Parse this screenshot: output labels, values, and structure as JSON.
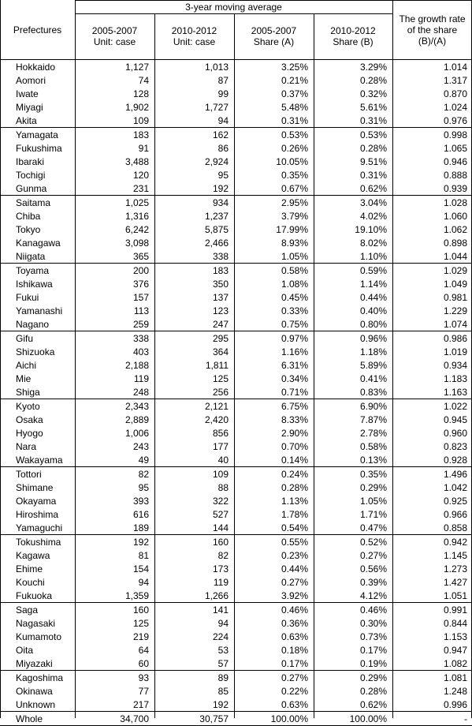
{
  "header": {
    "title": "Prefectures",
    "span_title": "3-year moving average",
    "columns": [
      "2005-2007\nUnit: case",
      "2010-2012\nUnit: case",
      "2005-2007\nShare (A)",
      "2010-2012\nShare (B)"
    ],
    "growth": "The growth rate\nof the share\n(B)/(A)"
  },
  "table": {
    "groups": [
      [
        [
          "Hokkaido",
          "1,127",
          "1,013",
          "3.25%",
          "3.29%",
          "1.014"
        ],
        [
          "Aomori",
          "74",
          "87",
          "0.21%",
          "0.28%",
          "1.317"
        ],
        [
          "Iwate",
          "128",
          "99",
          "0.37%",
          "0.32%",
          "0.870"
        ],
        [
          "Miyagi",
          "1,902",
          "1,727",
          "5.48%",
          "5.61%",
          "1.024"
        ],
        [
          "Akita",
          "109",
          "94",
          "0.31%",
          "0.31%",
          "0.976"
        ]
      ],
      [
        [
          "Yamagata",
          "183",
          "162",
          "0.53%",
          "0.53%",
          "0.998"
        ],
        [
          "Fukushima",
          "91",
          "86",
          "0.26%",
          "0.28%",
          "1.065"
        ],
        [
          "Ibaraki",
          "3,488",
          "2,924",
          "10.05%",
          "9.51%",
          "0.946"
        ],
        [
          "Tochigi",
          "120",
          "95",
          "0.35%",
          "0.31%",
          "0.888"
        ],
        [
          "Gunma",
          "231",
          "192",
          "0.67%",
          "0.62%",
          "0.939"
        ]
      ],
      [
        [
          "Saitama",
          "1,025",
          "934",
          "2.95%",
          "3.04%",
          "1.028"
        ],
        [
          "Chiba",
          "1,316",
          "1,237",
          "3.79%",
          "4.02%",
          "1.060"
        ],
        [
          "Tokyo",
          "6,242",
          "5,875",
          "17.99%",
          "19.10%",
          "1.062"
        ],
        [
          "Kanagawa",
          "3,098",
          "2,466",
          "8.93%",
          "8.02%",
          "0.898"
        ],
        [
          "Niigata",
          "365",
          "338",
          "1.05%",
          "1.10%",
          "1.044"
        ]
      ],
      [
        [
          "Toyama",
          "200",
          "183",
          "0.58%",
          "0.59%",
          "1.029"
        ],
        [
          "Ishikawa",
          "376",
          "350",
          "1.08%",
          "1.14%",
          "1.049"
        ],
        [
          "Fukui",
          "157",
          "137",
          "0.45%",
          "0.44%",
          "0.981"
        ],
        [
          "Yamanashi",
          "113",
          "123",
          "0.33%",
          "0.40%",
          "1.229"
        ],
        [
          "Nagano",
          "259",
          "247",
          "0.75%",
          "0.80%",
          "1.074"
        ]
      ],
      [
        [
          "Gifu",
          "338",
          "295",
          "0.97%",
          "0.96%",
          "0.986"
        ],
        [
          "Shizuoka",
          "403",
          "364",
          "1.16%",
          "1.18%",
          "1.019"
        ],
        [
          "Aichi",
          "2,188",
          "1,811",
          "6.31%",
          "5.89%",
          "0.934"
        ],
        [
          "Mie",
          "119",
          "125",
          "0.34%",
          "0.41%",
          "1.183"
        ],
        [
          "Shiga",
          "248",
          "256",
          "0.71%",
          "0.83%",
          "1.163"
        ]
      ],
      [
        [
          "Kyoto",
          "2,343",
          "2,121",
          "6.75%",
          "6.90%",
          "1.022"
        ],
        [
          "Osaka",
          "2,889",
          "2,420",
          "8.33%",
          "7.87%",
          "0.945"
        ],
        [
          "Hyogo",
          "1,006",
          "856",
          "2.90%",
          "2.78%",
          "0.960"
        ],
        [
          "Nara",
          "243",
          "177",
          "0.70%",
          "0.58%",
          "0.823"
        ],
        [
          "Wakayama",
          "49",
          "40",
          "0.14%",
          "0.13%",
          "0.928"
        ]
      ],
      [
        [
          "Tottori",
          "82",
          "109",
          "0.24%",
          "0.35%",
          "1.496"
        ],
        [
          "Shimane",
          "95",
          "88",
          "0.28%",
          "0.29%",
          "1.042"
        ],
        [
          "Okayama",
          "393",
          "322",
          "1.13%",
          "1.05%",
          "0.925"
        ],
        [
          "Hiroshima",
          "616",
          "527",
          "1.78%",
          "1.71%",
          "0.966"
        ],
        [
          "Yamaguchi",
          "189",
          "144",
          "0.54%",
          "0.47%",
          "0.858"
        ]
      ],
      [
        [
          "Tokushima",
          "192",
          "160",
          "0.55%",
          "0.52%",
          "0.942"
        ],
        [
          "Kagawa",
          "81",
          "82",
          "0.23%",
          "0.27%",
          "1.145"
        ],
        [
          "Ehime",
          "154",
          "173",
          "0.44%",
          "0.56%",
          "1.273"
        ],
        [
          "Kouchi",
          "94",
          "119",
          "0.27%",
          "0.39%",
          "1.427"
        ],
        [
          "Fukuoka",
          "1,359",
          "1,266",
          "3.92%",
          "4.12%",
          "1.051"
        ]
      ],
      [
        [
          "Saga",
          "160",
          "141",
          "0.46%",
          "0.46%",
          "0.991"
        ],
        [
          "Nagasaki",
          "125",
          "94",
          "0.36%",
          "0.30%",
          "0.844"
        ],
        [
          "Kumamoto",
          "219",
          "224",
          "0.63%",
          "0.73%",
          "1.153"
        ],
        [
          "Oita",
          "64",
          "53",
          "0.18%",
          "0.17%",
          "0.947"
        ],
        [
          "Miyazaki",
          "60",
          "57",
          "0.17%",
          "0.19%",
          "1.082"
        ]
      ],
      [
        [
          "Kagoshima",
          "93",
          "89",
          "0.27%",
          "0.29%",
          "1.081"
        ],
        [
          "Okinawa",
          "77",
          "85",
          "0.22%",
          "0.28%",
          "1.248"
        ],
        [
          "Unknown",
          "217",
          "192",
          "0.63%",
          "0.62%",
          "0.996"
        ]
      ],
      [
        [
          "Whole",
          "34,700",
          "30,757",
          "100.00%",
          "100.00%",
          "-"
        ]
      ]
    ]
  }
}
